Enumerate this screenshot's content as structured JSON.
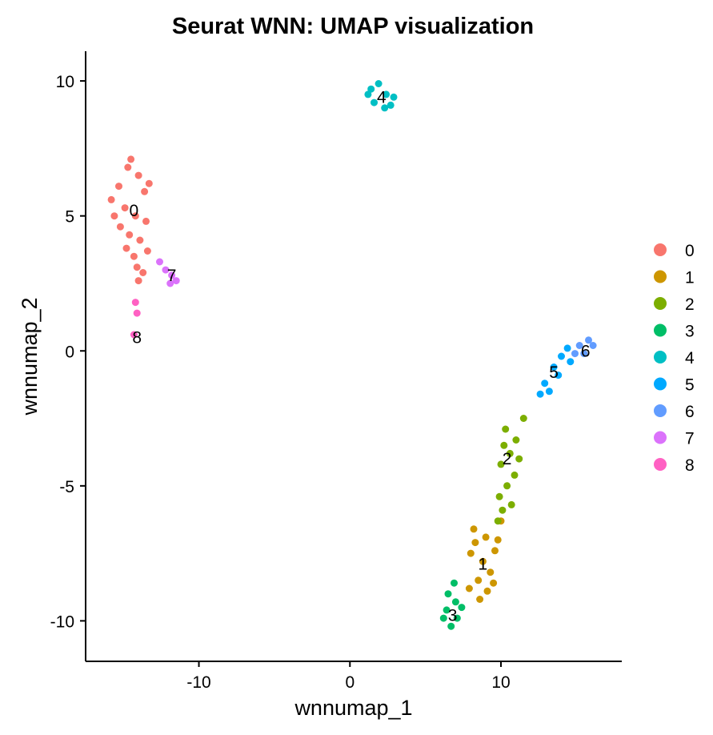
{
  "chart_data": {
    "type": "scatter",
    "title": "Seurat WNN: UMAP visualization",
    "xlabel": "wnnumap_1",
    "ylabel": "wnnumap_2",
    "xlim": [
      -17.5,
      18.0
    ],
    "ylim": [
      -11.5,
      11.1
    ],
    "xticks": [
      -10,
      0,
      10
    ],
    "yticks": [
      10,
      5,
      0,
      -5,
      -10
    ],
    "grid": false,
    "legend_position": "right",
    "clusters": [
      {
        "name": "0",
        "color": "#F8766D",
        "label_x": -14.3,
        "label_y": 5.2,
        "points": [
          [
            -15.3,
            6.1
          ],
          [
            -14.7,
            6.8
          ],
          [
            -14.0,
            6.5
          ],
          [
            -13.6,
            5.9
          ],
          [
            -15.8,
            5.6
          ],
          [
            -14.9,
            5.3
          ],
          [
            -14.2,
            5.0
          ],
          [
            -13.5,
            4.8
          ],
          [
            -15.2,
            4.6
          ],
          [
            -14.6,
            4.3
          ],
          [
            -13.9,
            4.1
          ],
          [
            -14.8,
            3.8
          ],
          [
            -14.3,
            3.5
          ],
          [
            -13.4,
            3.7
          ],
          [
            -14.1,
            3.1
          ],
          [
            -13.7,
            2.9
          ],
          [
            -14.0,
            2.6
          ],
          [
            -15.6,
            5.0
          ],
          [
            -14.5,
            7.1
          ],
          [
            -13.3,
            6.2
          ]
        ]
      },
      {
        "name": "1",
        "color": "#CD9600",
        "label_x": 8.8,
        "label_y": -7.9,
        "points": [
          [
            8.2,
            -6.6
          ],
          [
            9.0,
            -6.9
          ],
          [
            9.6,
            -7.4
          ],
          [
            8.0,
            -7.5
          ],
          [
            8.8,
            -7.8
          ],
          [
            9.3,
            -8.2
          ],
          [
            8.5,
            -8.5
          ],
          [
            9.1,
            -8.9
          ],
          [
            7.9,
            -8.8
          ],
          [
            8.6,
            -9.2
          ],
          [
            9.8,
            -7.0
          ],
          [
            10.0,
            -6.3
          ],
          [
            8.3,
            -7.1
          ],
          [
            9.5,
            -8.6
          ]
        ]
      },
      {
        "name": "2",
        "color": "#7CAE00",
        "label_x": 10.4,
        "label_y": -4.0,
        "points": [
          [
            10.3,
            -2.9
          ],
          [
            11.0,
            -3.3
          ],
          [
            10.6,
            -3.8
          ],
          [
            10.0,
            -4.2
          ],
          [
            10.9,
            -4.6
          ],
          [
            10.4,
            -5.0
          ],
          [
            9.9,
            -5.4
          ],
          [
            10.7,
            -5.7
          ],
          [
            11.2,
            -4.0
          ],
          [
            10.2,
            -3.5
          ],
          [
            11.5,
            -2.5
          ],
          [
            10.1,
            -5.9
          ],
          [
            9.8,
            -6.3
          ]
        ]
      },
      {
        "name": "3",
        "color": "#00BE67",
        "label_x": 6.8,
        "label_y": -9.8,
        "points": [
          [
            6.5,
            -9.0
          ],
          [
            7.0,
            -9.3
          ],
          [
            6.4,
            -9.6
          ],
          [
            7.1,
            -9.9
          ],
          [
            6.7,
            -10.2
          ],
          [
            6.9,
            -8.6
          ],
          [
            7.4,
            -9.5
          ],
          [
            6.2,
            -9.9
          ]
        ]
      },
      {
        "name": "4",
        "color": "#00BFC4",
        "label_x": 2.1,
        "label_y": 9.4,
        "points": [
          [
            1.4,
            9.7
          ],
          [
            1.9,
            9.9
          ],
          [
            2.4,
            9.5
          ],
          [
            1.6,
            9.2
          ],
          [
            2.7,
            9.1
          ],
          [
            2.3,
            9.0
          ],
          [
            1.2,
            9.5
          ],
          [
            2.9,
            9.4
          ]
        ]
      },
      {
        "name": "5",
        "color": "#00A9FF",
        "label_x": 13.5,
        "label_y": -0.8,
        "points": [
          [
            12.9,
            -1.2
          ],
          [
            13.5,
            -0.6
          ],
          [
            14.0,
            -0.2
          ],
          [
            13.2,
            -1.5
          ],
          [
            14.4,
            0.1
          ],
          [
            12.6,
            -1.6
          ],
          [
            13.8,
            -0.9
          ],
          [
            14.6,
            -0.4
          ]
        ]
      },
      {
        "name": "6",
        "color": "#619CFF",
        "label_x": 15.6,
        "label_y": 0.0,
        "points": [
          [
            15.2,
            0.2
          ],
          [
            15.8,
            0.4
          ],
          [
            15.5,
            -0.1
          ],
          [
            16.1,
            0.2
          ],
          [
            14.9,
            -0.1
          ]
        ]
      },
      {
        "name": "7",
        "color": "#DB72FB",
        "label_x": -11.8,
        "label_y": 2.8,
        "points": [
          [
            -12.2,
            3.0
          ],
          [
            -11.8,
            2.8
          ],
          [
            -11.5,
            2.6
          ],
          [
            -12.6,
            3.3
          ],
          [
            -11.9,
            2.5
          ]
        ]
      },
      {
        "name": "8",
        "color": "#FF61C3",
        "label_x": -14.1,
        "label_y": 0.5,
        "points": [
          [
            -14.2,
            1.8
          ],
          [
            -14.1,
            1.4
          ],
          [
            -14.3,
            0.6
          ]
        ]
      }
    ]
  }
}
